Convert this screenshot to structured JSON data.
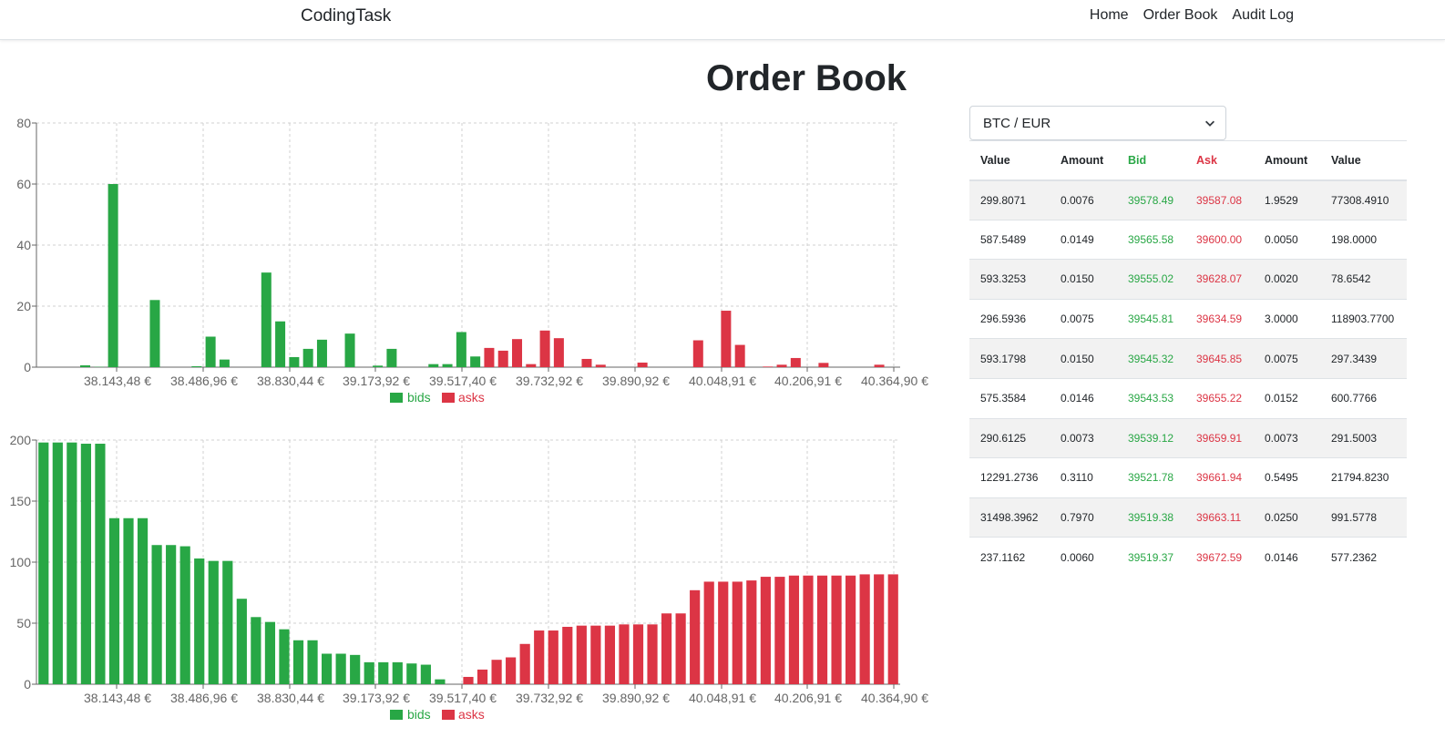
{
  "navbar": {
    "brand": "CodingTask",
    "links": [
      "Home",
      "Order Book",
      "Audit Log"
    ]
  },
  "page": {
    "title": "Order Book"
  },
  "pair_select": {
    "selected": "BTC / EUR"
  },
  "colors": {
    "bid": "#28a745",
    "ask": "#dc3545"
  },
  "table": {
    "headers": [
      "Value",
      "Amount",
      "Bid",
      "Ask",
      "Amount",
      "Value"
    ],
    "rows": [
      [
        "299.8071",
        "0.0076",
        "39578.49",
        "39587.08",
        "1.9529",
        "77308.4910"
      ],
      [
        "587.5489",
        "0.0149",
        "39565.58",
        "39600.00",
        "0.0050",
        "198.0000"
      ],
      [
        "593.3253",
        "0.0150",
        "39555.02",
        "39628.07",
        "0.0020",
        "78.6542"
      ],
      [
        "296.5936",
        "0.0075",
        "39545.81",
        "39634.59",
        "3.0000",
        "118903.7700"
      ],
      [
        "593.1798",
        "0.0150",
        "39545.32",
        "39645.85",
        "0.0075",
        "297.3439"
      ],
      [
        "575.3584",
        "0.0146",
        "39543.53",
        "39655.22",
        "0.0152",
        "600.7766"
      ],
      [
        "290.6125",
        "0.0073",
        "39539.12",
        "39659.91",
        "0.0073",
        "291.5003"
      ],
      [
        "12291.2736",
        "0.3110",
        "39521.78",
        "39661.94",
        "0.5495",
        "21794.8230"
      ],
      [
        "31498.3962",
        "0.7970",
        "39519.38",
        "39663.11",
        "0.0250",
        "991.5778"
      ],
      [
        "237.1162",
        "0.0060",
        "39519.37",
        "39672.59",
        "0.0146",
        "577.2362"
      ]
    ]
  },
  "chart_data": [
    {
      "type": "bar",
      "ylim": [
        0,
        80
      ],
      "yticks": [
        0,
        20,
        40,
        60,
        80
      ],
      "xtick_labels": [
        "38.143,48 €",
        "38.486,96 €",
        "38.830,44 €",
        "39.173,92 €",
        "39.517,40 €",
        "39.732,92 €",
        "39.890,92 €",
        "40.048,91 €",
        "40.206,91 €",
        "40.364,90 €"
      ],
      "series": [
        {
          "name": "bids",
          "values": [
            0.0,
            0.0,
            0.0,
            0.6,
            0.1,
            60.0,
            0.0,
            0.0,
            22.0,
            0.0,
            0.0,
            0.3,
            10.0,
            2.5,
            0.0,
            0.0,
            31.0,
            15.0,
            3.3,
            6.0,
            9.0,
            0.0,
            11.0,
            0.0,
            0.5,
            6.0,
            0.0,
            0.0,
            1.0,
            1.0,
            11.5,
            3.5
          ]
        },
        {
          "name": "asks",
          "values": [
            6.3,
            5.4,
            9.2,
            1.0,
            12.0,
            9.5,
            0.0,
            2.7,
            0.8,
            0.0,
            0.0,
            1.5,
            0.0,
            0.0,
            0.0,
            8.8,
            0.0,
            18.5,
            7.3,
            0.0,
            0.2,
            0.8,
            3.0,
            0.0,
            1.4,
            0.0,
            0.0,
            0.0,
            0.8,
            0.0
          ]
        }
      ],
      "legend": "bottom-center",
      "grid": true
    },
    {
      "type": "bar",
      "ylim": [
        0,
        200
      ],
      "yticks": [
        0,
        50,
        100,
        150,
        200
      ],
      "xtick_labels": [
        "38.143,48 €",
        "38.486,96 €",
        "38.830,44 €",
        "39.173,92 €",
        "39.517,40 €",
        "39.732,92 €",
        "39.890,92 €",
        "40.048,91 €",
        "40.206,91 €",
        "40.364,90 €"
      ],
      "series": [
        {
          "name": "bids",
          "values": [
            198,
            198,
            198,
            197,
            197,
            136,
            136,
            136,
            114,
            114,
            113,
            103,
            101,
            101,
            70,
            55,
            51,
            45,
            36,
            36,
            25,
            25,
            24,
            18,
            18,
            18,
            17,
            16,
            4,
            0
          ]
        },
        {
          "name": "asks",
          "values": [
            6,
            12,
            20,
            22,
            33,
            44,
            44,
            47,
            48,
            48,
            48,
            49,
            49,
            49,
            58,
            58,
            77,
            84,
            84,
            84,
            85,
            88,
            88,
            89,
            89,
            89,
            89,
            89,
            90,
            90,
            90
          ]
        }
      ],
      "legend": "bottom-center",
      "grid": true
    }
  ]
}
